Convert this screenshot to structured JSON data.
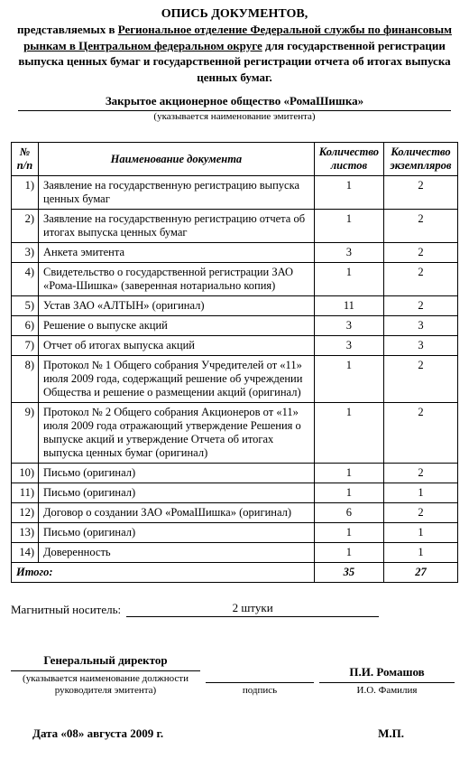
{
  "header": {
    "title_main": "ОПИСЬ ДОКУМЕНТОВ,",
    "line1_pre": "представляемых в ",
    "line1_underlined": "Региональное отделение Федеральной службы по финансовым рынкам в Центральном федеральном округе",
    "line1_post": " для государственной регистрации выпуска ценных бумаг и государственной регистрации отчета об итогах выпуска ценных бумаг."
  },
  "issuer": {
    "name": "Закрытое акционерное общество «РомаШишка»",
    "note": "(указывается наименование эмитента)"
  },
  "table": {
    "head_num": "№ п/п",
    "head_name": "Наименование документа",
    "head_sheets": "Количество листов",
    "head_copies": "Количество экземпляров",
    "rows": [
      {
        "n": "1)",
        "name": "Заявление на государственную регистрацию выпуска ценных бумаг",
        "s": "1",
        "c": "2"
      },
      {
        "n": "2)",
        "name": "Заявление на государственную регистрацию отчета об итогах выпуска ценных бумаг",
        "s": "1",
        "c": "2"
      },
      {
        "n": "3)",
        "name": "Анкета эмитента",
        "s": "3",
        "c": "2"
      },
      {
        "n": "4)",
        "name": "Свидетельство о государственной регистрации ЗАО «Рома-Шишка» (заверенная нотариально копия)",
        "s": "1",
        "c": "2"
      },
      {
        "n": "5)",
        "name": "Устав ЗАО «АЛТЫН» (оригинал)",
        "s": "11",
        "c": "2"
      },
      {
        "n": "6)",
        "name": "Решение о выпуске акций",
        "s": "3",
        "c": "3"
      },
      {
        "n": "7)",
        "name": "Отчет об итогах выпуска акций",
        "s": "3",
        "c": "3"
      },
      {
        "n": "8)",
        "name": "Протокол № 1 Общего собрания Учредителей от «11» июля 2009 года, содержащий решение об учреждении Общества и решение о размещении акций (оригинал)",
        "s": "1",
        "c": "2"
      },
      {
        "n": "9)",
        "name": "Протокол № 2 Общего собрания Акционеров от «11» июля 2009 года отражающий утверждение Решения о выпуске акций и утверждение Отчета об итогах выпуска ценных бумаг (оригинал)",
        "s": "1",
        "c": "2"
      },
      {
        "n": "10)",
        "name": "Письмо (оригинал)",
        "s": "1",
        "c": "2"
      },
      {
        "n": "11)",
        "name": "Письмо (оригинал)",
        "s": "1",
        "c": "1"
      },
      {
        "n": "12)",
        "name": "Договор о создании ЗАО «РомаШишка» (оригинал)",
        "s": "6",
        "c": "2"
      },
      {
        "n": "13)",
        "name": "Письмо (оригинал)",
        "s": "1",
        "c": "1"
      },
      {
        "n": "14)",
        "name": "Доверенность",
        "s": "1",
        "c": "1"
      }
    ],
    "total_label": "Итого:",
    "total_sheets": "35",
    "total_copies": "27"
  },
  "magnet": {
    "label": "Магнитный носитель:",
    "value": "2 штуки"
  },
  "signature": {
    "role_above": "Генеральный директор",
    "role_note": "(указывается наименование должности руководителя эмитента)",
    "sign_label": "подпись",
    "name_above": "П.И. Ромашов",
    "name_note": "И.О. Фамилия"
  },
  "footer": {
    "date": "Дата «08» августа 2009 г.",
    "stamp": "М.П."
  }
}
